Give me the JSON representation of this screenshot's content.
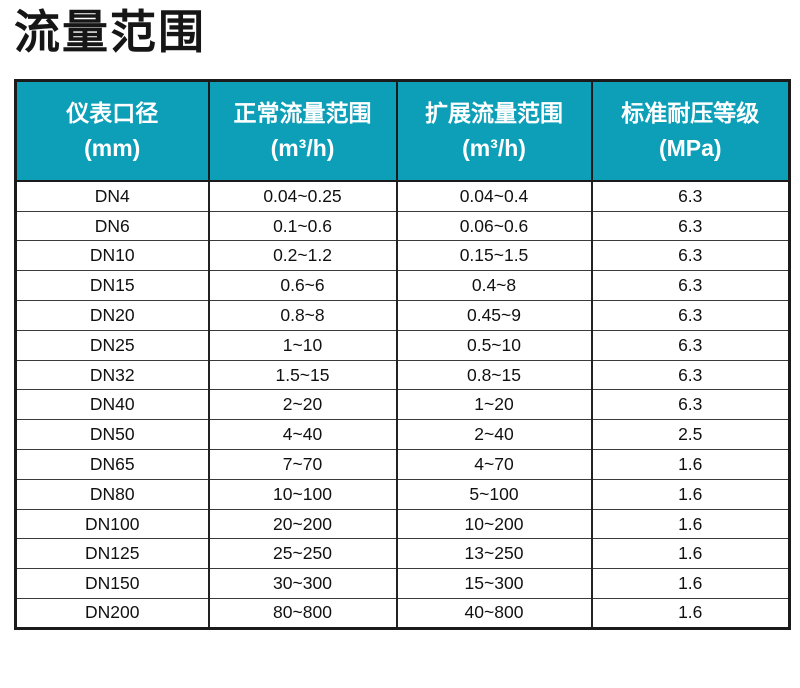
{
  "page": {
    "title": "流量范围"
  },
  "table": {
    "columns": [
      {
        "label": "仪表口径",
        "unit": "(mm)"
      },
      {
        "label": "正常流量范围",
        "unit": "(m³/h)"
      },
      {
        "label": "扩展流量范围",
        "unit": "(m³/h)"
      },
      {
        "label": "标准耐压等级",
        "unit": "(MPa)"
      }
    ],
    "rows": [
      [
        "DN4",
        "0.04~0.25",
        "0.04~0.4",
        "6.3"
      ],
      [
        "DN6",
        "0.1~0.6",
        "0.06~0.6",
        "6.3"
      ],
      [
        "DN10",
        "0.2~1.2",
        "0.15~1.5",
        "6.3"
      ],
      [
        "DN15",
        "0.6~6",
        "0.4~8",
        "6.3"
      ],
      [
        "DN20",
        "0.8~8",
        "0.45~9",
        "6.3"
      ],
      [
        "DN25",
        "1~10",
        "0.5~10",
        "6.3"
      ],
      [
        "DN32",
        "1.5~15",
        "0.8~15",
        "6.3"
      ],
      [
        "DN40",
        "2~20",
        "1~20",
        "6.3"
      ],
      [
        "DN50",
        "4~40",
        "2~40",
        "2.5"
      ],
      [
        "DN65",
        "7~70",
        "4~70",
        "1.6"
      ],
      [
        "DN80",
        "10~100",
        "5~100",
        "1.6"
      ],
      [
        "DN100",
        "20~200",
        "10~200",
        "1.6"
      ],
      [
        "DN125",
        "25~250",
        "13~250",
        "1.6"
      ],
      [
        "DN150",
        "30~300",
        "15~300",
        "1.6"
      ],
      [
        "DN200",
        "80~800",
        "40~800",
        "1.6"
      ]
    ]
  },
  "colors": {
    "header_bg": "#0d9fb8",
    "header_text": "#ffffff",
    "border": "#1b1b1b",
    "body_text": "#111111"
  }
}
